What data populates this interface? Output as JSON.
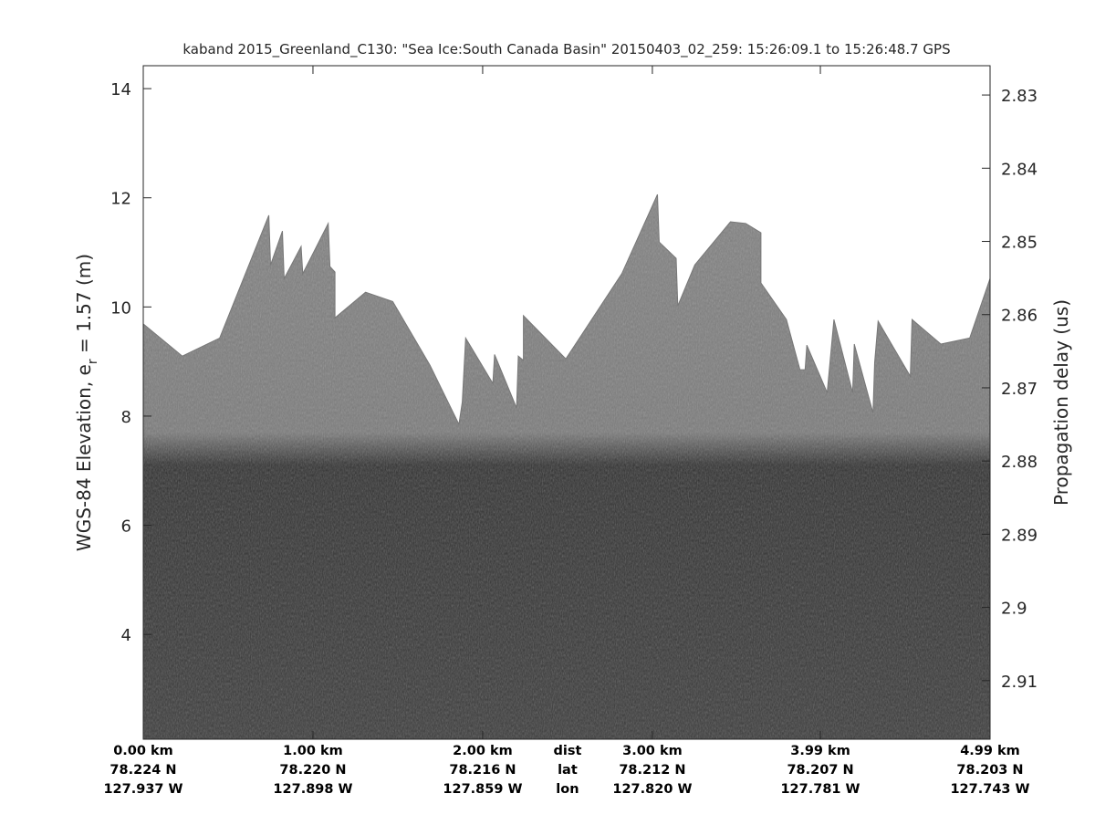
{
  "chart_data": {
    "type": "heatmap",
    "title": "kaband 2015_Greenland_C130: \"Sea Ice:South Canada Basin\"  20150403_02_259: 15:26:09.1 to 15:26:48.7 GPS",
    "ylabel_main": "WGS-84 Elevation, e",
    "ylabel_sub": "r",
    "ylabel_tail": " = 1.57 (m)",
    "y2label": "Propagation delay (us)",
    "xlim_km": [
      0,
      4.99
    ],
    "ylim": [
      2.08,
      14.42
    ],
    "y2lim": [
      2.826,
      2.918
    ],
    "yticks": [
      4,
      6,
      8,
      10,
      12,
      14
    ],
    "y2ticks": [
      2.83,
      2.84,
      2.85,
      2.86,
      2.87,
      2.88,
      2.89,
      2.9,
      2.91
    ],
    "y2tick_labels": [
      "2.83",
      "2.84",
      "2.85",
      "2.86",
      "2.87",
      "2.88",
      "2.89",
      "2.9",
      "2.91"
    ],
    "x_row_names": [
      "dist",
      "lat",
      "lon"
    ],
    "x_row_name_km": 2.5,
    "xticks": [
      {
        "km": 0.0,
        "dist": "0.00 km",
        "lat": "78.224 N",
        "lon": "127.937 W"
      },
      {
        "km": 1.0,
        "dist": "1.00 km",
        "lat": "78.220 N",
        "lon": "127.898 W"
      },
      {
        "km": 2.0,
        "dist": "2.00 km",
        "lat": "78.216 N",
        "lon": "127.859 W"
      },
      {
        "km": 3.0,
        "dist": "3.00 km",
        "lat": "78.212 N",
        "lon": "127.820 W"
      },
      {
        "km": 3.99,
        "dist": "3.99 km",
        "lat": "78.207 N",
        "lon": "127.781 W"
      },
      {
        "km": 4.99,
        "dist": "4.99 km",
        "lat": "78.203 N",
        "lon": "127.743 W"
      }
    ],
    "colormap": "gray",
    "surface_color": "#808080",
    "subsurface_color": "#303030",
    "subsurface_top_elevation": 7.3,
    "surface_profile": [
      [
        0,
        9.69
      ],
      [
        0.23,
        9.1
      ],
      [
        0.45,
        9.43
      ],
      [
        0.74,
        11.68
      ],
      [
        0.75,
        10.77
      ],
      [
        0.82,
        11.39
      ],
      [
        0.83,
        10.52
      ],
      [
        0.93,
        11.11
      ],
      [
        0.94,
        10.61
      ],
      [
        1.09,
        11.53
      ],
      [
        1.1,
        10.74
      ],
      [
        1.13,
        10.64
      ],
      [
        1.13,
        9.8
      ],
      [
        1.31,
        10.27
      ],
      [
        1.47,
        10.1
      ],
      [
        1.69,
        8.93
      ],
      [
        1.86,
        7.85
      ],
      [
        1.88,
        8.26
      ],
      [
        1.9,
        9.43
      ],
      [
        2.06,
        8.6
      ],
      [
        2.07,
        9.13
      ],
      [
        2.2,
        8.15
      ],
      [
        2.21,
        9.1
      ],
      [
        2.24,
        9.02
      ],
      [
        2.24,
        9.84
      ],
      [
        2.49,
        9.05
      ],
      [
        2.82,
        10.61
      ],
      [
        3.03,
        12.06
      ],
      [
        3.04,
        11.19
      ],
      [
        3.14,
        10.89
      ],
      [
        3.15,
        10.02
      ],
      [
        3.25,
        10.77
      ],
      [
        3.46,
        11.56
      ],
      [
        3.55,
        11.53
      ],
      [
        3.64,
        11.36
      ],
      [
        3.64,
        10.44
      ],
      [
        3.79,
        9.77
      ],
      [
        3.87,
        8.85
      ],
      [
        3.9,
        8.85
      ],
      [
        3.91,
        9.3
      ],
      [
        4.03,
        8.43
      ],
      [
        4.07,
        9.77
      ],
      [
        4.18,
        8.43
      ],
      [
        4.19,
        9.32
      ],
      [
        4.3,
        8.06
      ],
      [
        4.31,
        8.98
      ],
      [
        4.33,
        9.74
      ],
      [
        4.52,
        8.73
      ],
      [
        4.53,
        9.77
      ],
      [
        4.7,
        9.32
      ],
      [
        4.87,
        9.43
      ],
      [
        4.99,
        10.52
      ]
    ]
  }
}
